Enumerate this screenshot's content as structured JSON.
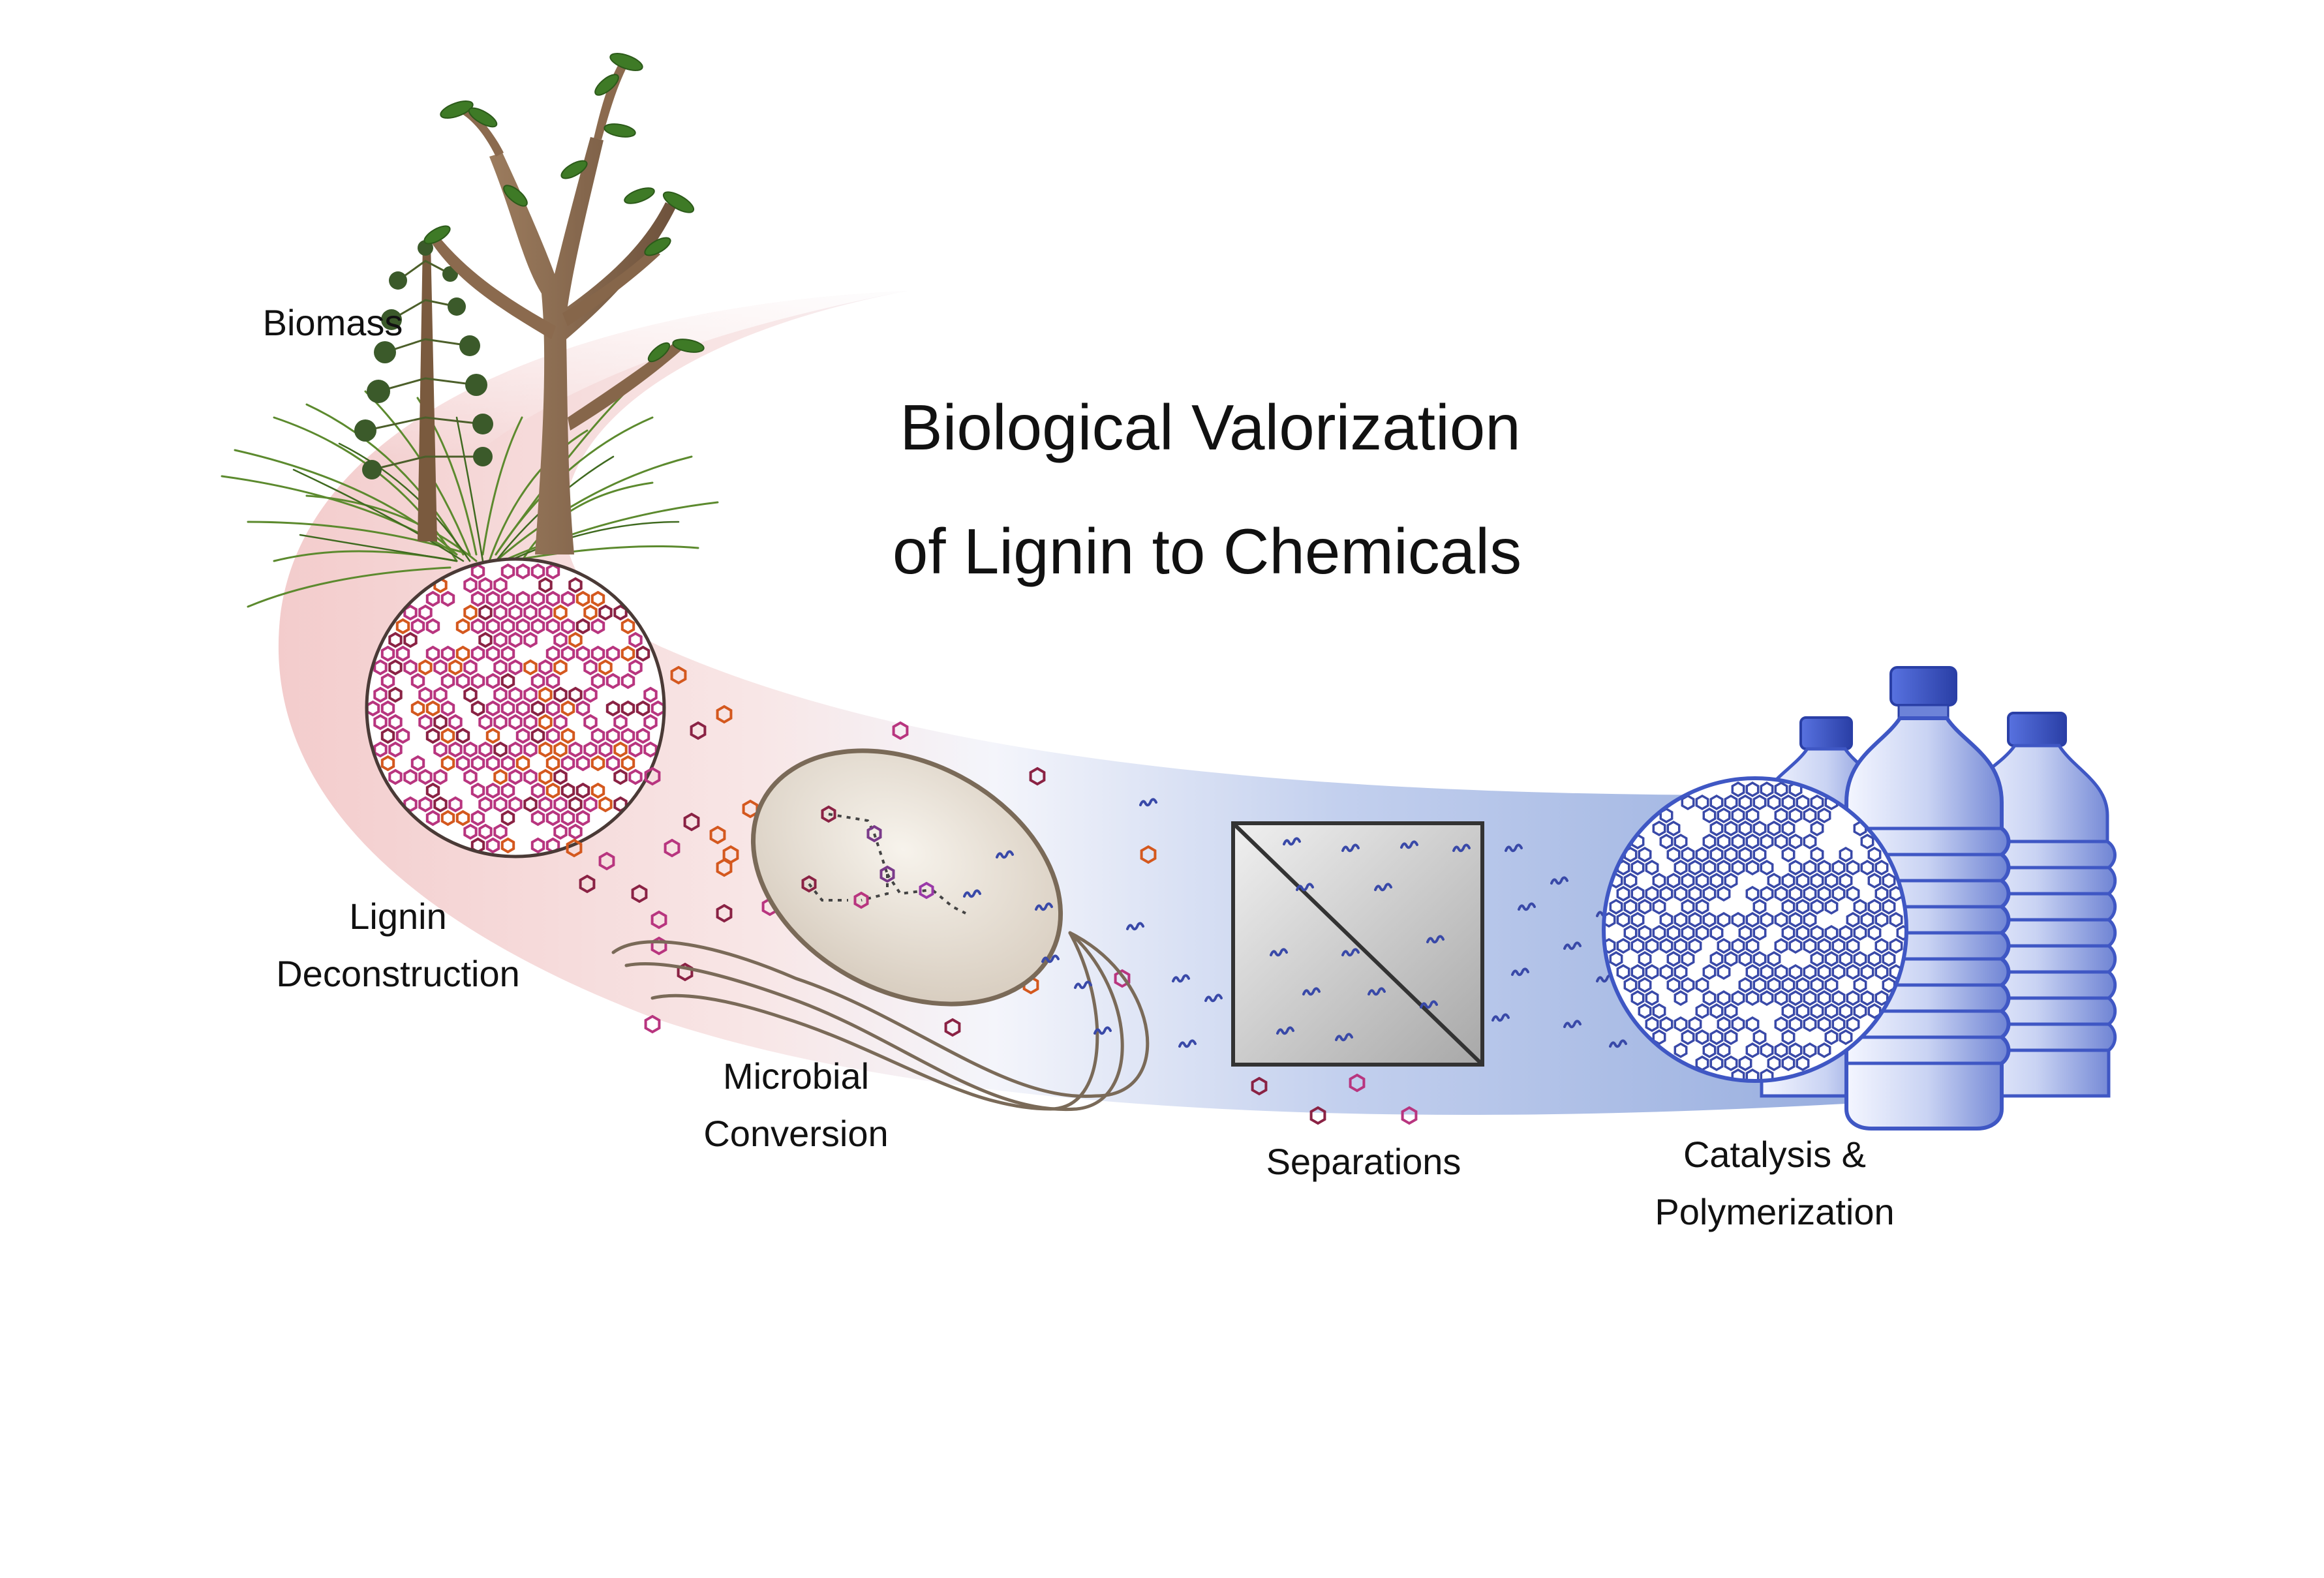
{
  "title": {
    "line1": "Biological Valorization",
    "line2": "of Lignin to Chemicals"
  },
  "stages": {
    "biomass": "Biomass",
    "lignin_line1": "Lignin",
    "lignin_line2": "Deconstruction",
    "microbial_line1": "Microbial",
    "microbial_line2": "Conversion",
    "separations": "Separations",
    "catalysis_line1": "Catalysis &",
    "catalysis_line2": "Polymerization"
  },
  "colors": {
    "ribbon_start": "#f2c9c9",
    "ribbon_end": "#8ea6db",
    "lignin_magenta": "#b8357f",
    "lignin_orange": "#d4581e",
    "lignin_maroon": "#8a2244",
    "polymer_blue": "#3949a8",
    "bottle_blue": "#3f57c4",
    "bacterium_outline": "#7a6a58",
    "trunk": "#8b6a4e",
    "leaf": "#3e7a26"
  }
}
